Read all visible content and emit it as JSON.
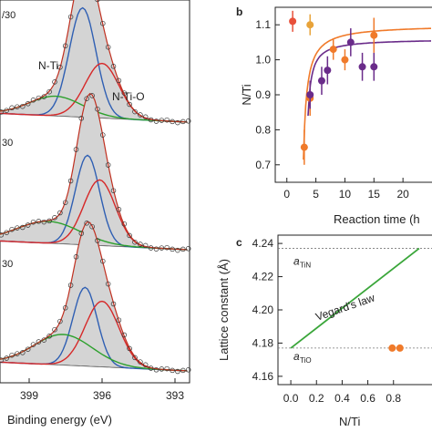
{
  "chart_data": [
    {
      "type": "line",
      "panel": "a",
      "xlabel": "Binding energy (eV)",
      "x_ticks": [
        "399",
        "396",
        "393"
      ],
      "xlim": [
        400.2,
        392.4
      ],
      "stacked_spectra": [
        {
          "label_fragment": "/30",
          "peak_labels": [
            "N-Ti",
            "N-Ti-O"
          ],
          "series": [
            {
              "name": "N-Ti",
              "color": "#2f5fb3",
              "center": 396.8,
              "height": 1.0,
              "sigma": 0.55
            },
            {
              "name": "N-Ti-O",
              "color": "#d62828",
              "center": 396.0,
              "height": 0.5,
              "sigma": 0.7
            },
            {
              "name": "",
              "color": "#2ca02c",
              "center": 397.9,
              "height": 0.18,
              "sigma": 1.1
            }
          ]
        },
        {
          "label_fragment": "30",
          "series": [
            {
              "name": "N-Ti",
              "color": "#2f5fb3",
              "center": 396.6,
              "height": 0.82,
              "sigma": 0.5
            },
            {
              "name": "N-Ti-O",
              "color": "#d62828",
              "center": 396.1,
              "height": 0.6,
              "sigma": 0.65
            },
            {
              "name": "",
              "color": "#2ca02c",
              "center": 398.2,
              "height": 0.2,
              "sigma": 1.3
            }
          ]
        },
        {
          "label_fragment": "30",
          "series": [
            {
              "name": "N-Ti",
              "color": "#2f5fb3",
              "center": 396.7,
              "height": 0.72,
              "sigma": 0.5
            },
            {
              "name": "N-Ti-O",
              "color": "#d62828",
              "center": 396.0,
              "height": 0.6,
              "sigma": 0.7
            },
            {
              "name": "",
              "color": "#2ca02c",
              "center": 397.6,
              "height": 0.28,
              "sigma": 1.2
            }
          ]
        }
      ]
    },
    {
      "type": "scatter",
      "panel": "b",
      "xlabel": "Reaction time (h",
      "ylabel": "N/Ti",
      "xlim": [
        -2,
        25
      ],
      "ylim": [
        0.65,
        1.15
      ],
      "x_ticks": [
        0,
        5,
        10,
        15,
        20
      ],
      "y_ticks": [
        0.7,
        0.8,
        0.9,
        1.0,
        1.1
      ],
      "series": [
        {
          "name": "",
          "color": "#e8503a",
          "points": [
            {
              "x": 1,
              "y": 1.11,
              "err": 0.03
            }
          ]
        },
        {
          "name": "",
          "color": "#e8a33a",
          "points": [
            {
              "x": 4,
              "y": 1.1,
              "err": 0.03
            }
          ]
        },
        {
          "name": "",
          "color": "#f07a2a",
          "fit": true,
          "points": [
            {
              "x": 3,
              "y": 0.75,
              "err": 0.05
            },
            {
              "x": 4,
              "y": 0.89,
              "err": 0.05
            },
            {
              "x": 8,
              "y": 1.03,
              "err": 0.03
            },
            {
              "x": 10,
              "y": 1.0,
              "err": 0.03
            },
            {
              "x": 15,
              "y": 1.07,
              "err": 0.05
            }
          ]
        },
        {
          "name": "",
          "color": "#6a2c8a",
          "fit": true,
          "points": [
            {
              "x": 4,
              "y": 0.9,
              "err": 0.04
            },
            {
              "x": 6,
              "y": 0.94,
              "err": 0.04
            },
            {
              "x": 7,
              "y": 0.97,
              "err": 0.04
            },
            {
              "x": 11,
              "y": 1.05,
              "err": 0.04
            },
            {
              "x": 13,
              "y": 0.98,
              "err": 0.04
            },
            {
              "x": 15,
              "y": 0.98,
              "err": 0.04
            }
          ]
        }
      ]
    },
    {
      "type": "line",
      "panel": "c",
      "xlabel": "N/Ti",
      "ylabel": "Lattice constant (Å)",
      "xlim": [
        -0.1,
        1.1
      ],
      "ylim": [
        4.155,
        4.245
      ],
      "x_ticks": [
        "0.0",
        "0.2",
        "0.4",
        "0.6",
        "0.8"
      ],
      "y_ticks": [
        "4.16",
        "4.18",
        "4.20",
        "4.22",
        "4.24"
      ],
      "reference_lines": [
        {
          "name": "a_TiN",
          "label": "a",
          "sub": "TiN",
          "y": 4.237
        },
        {
          "name": "a_TiO",
          "label": "a",
          "sub": "TiO",
          "y": 4.177
        }
      ],
      "vegard_line": {
        "label": "Vegard's law",
        "color": "#3aa63a",
        "points": [
          {
            "x": 0,
            "y": 4.177
          },
          {
            "x": 1,
            "y": 4.237
          }
        ]
      },
      "points": [
        {
          "x": 0.79,
          "y": 4.177,
          "color": "#f07a2a"
        },
        {
          "x": 0.85,
          "y": 4.177,
          "color": "#f07a2a"
        }
      ]
    }
  ],
  "panel_labels": {
    "b": "b",
    "c": "c"
  }
}
